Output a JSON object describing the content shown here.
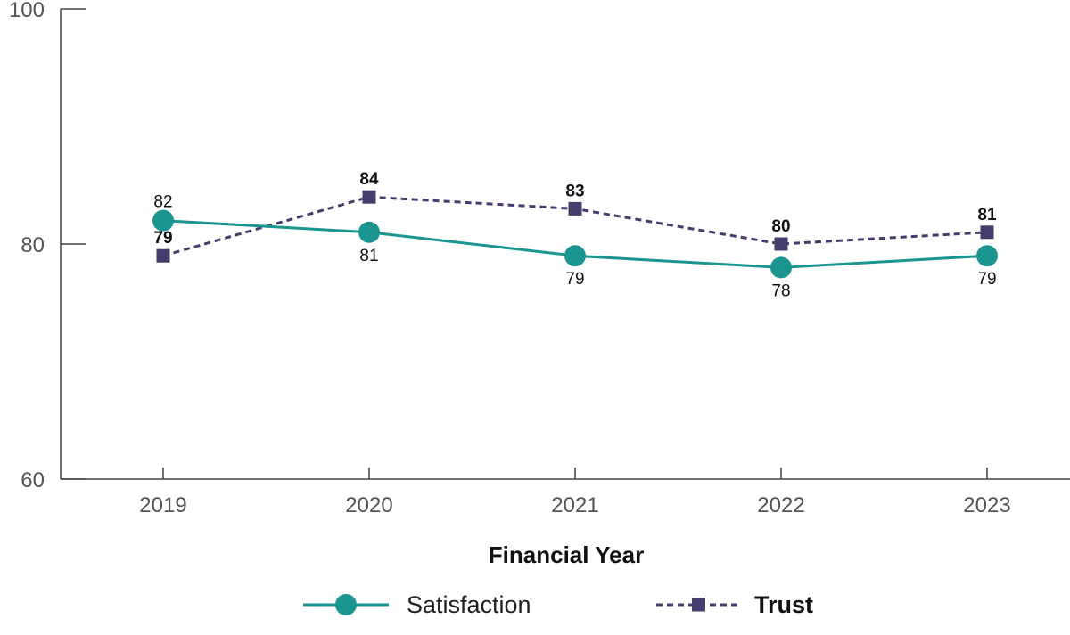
{
  "chart_data": {
    "type": "line",
    "categories": [
      "2019",
      "2020",
      "2021",
      "2022",
      "2023"
    ],
    "xlabel": "Financial Year",
    "ylabel": "",
    "ylim": [
      60,
      100
    ],
    "yticks": [
      60,
      80,
      100
    ],
    "grid": false,
    "legend_position": "bottom",
    "series": [
      {
        "name": "Satisfaction",
        "values": [
          82,
          81,
          79,
          78,
          79
        ],
        "color": "#1a9590",
        "marker": "circle",
        "line_style": "solid"
      },
      {
        "name": "Trust",
        "values": [
          79,
          84,
          83,
          80,
          81
        ],
        "color": "#463d6c",
        "marker": "square",
        "line_style": "dashed"
      }
    ]
  }
}
